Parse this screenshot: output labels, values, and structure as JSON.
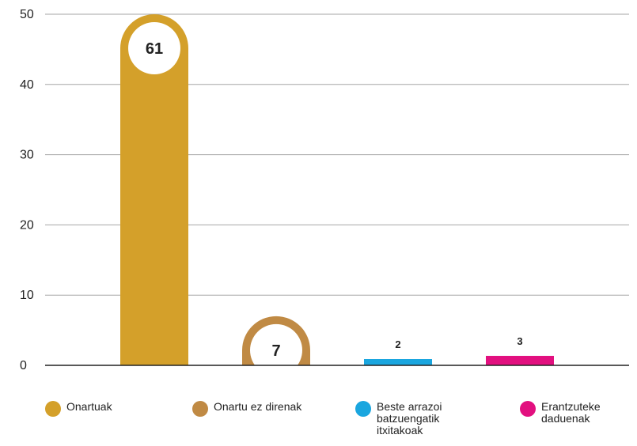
{
  "chart_data": {
    "type": "bar",
    "categories": [
      "Onartuak",
      "Onartu ez direnak",
      "Beste arrazoi\nbatzuengatik\nitxitakoak",
      "Erantzuteke\ndaduenak"
    ],
    "values": [
      61,
      7,
      2,
      3
    ],
    "value_labels": [
      "61",
      "7",
      "2",
      "3"
    ],
    "colors": [
      "#D4A02A",
      "#C08A44",
      "#1AA6DF",
      "#E2107F"
    ],
    "ylim": [
      0,
      50
    ],
    "yticks": [
      0,
      10,
      20,
      30,
      40,
      50
    ],
    "grid": true,
    "legend_position": "bottom"
  }
}
